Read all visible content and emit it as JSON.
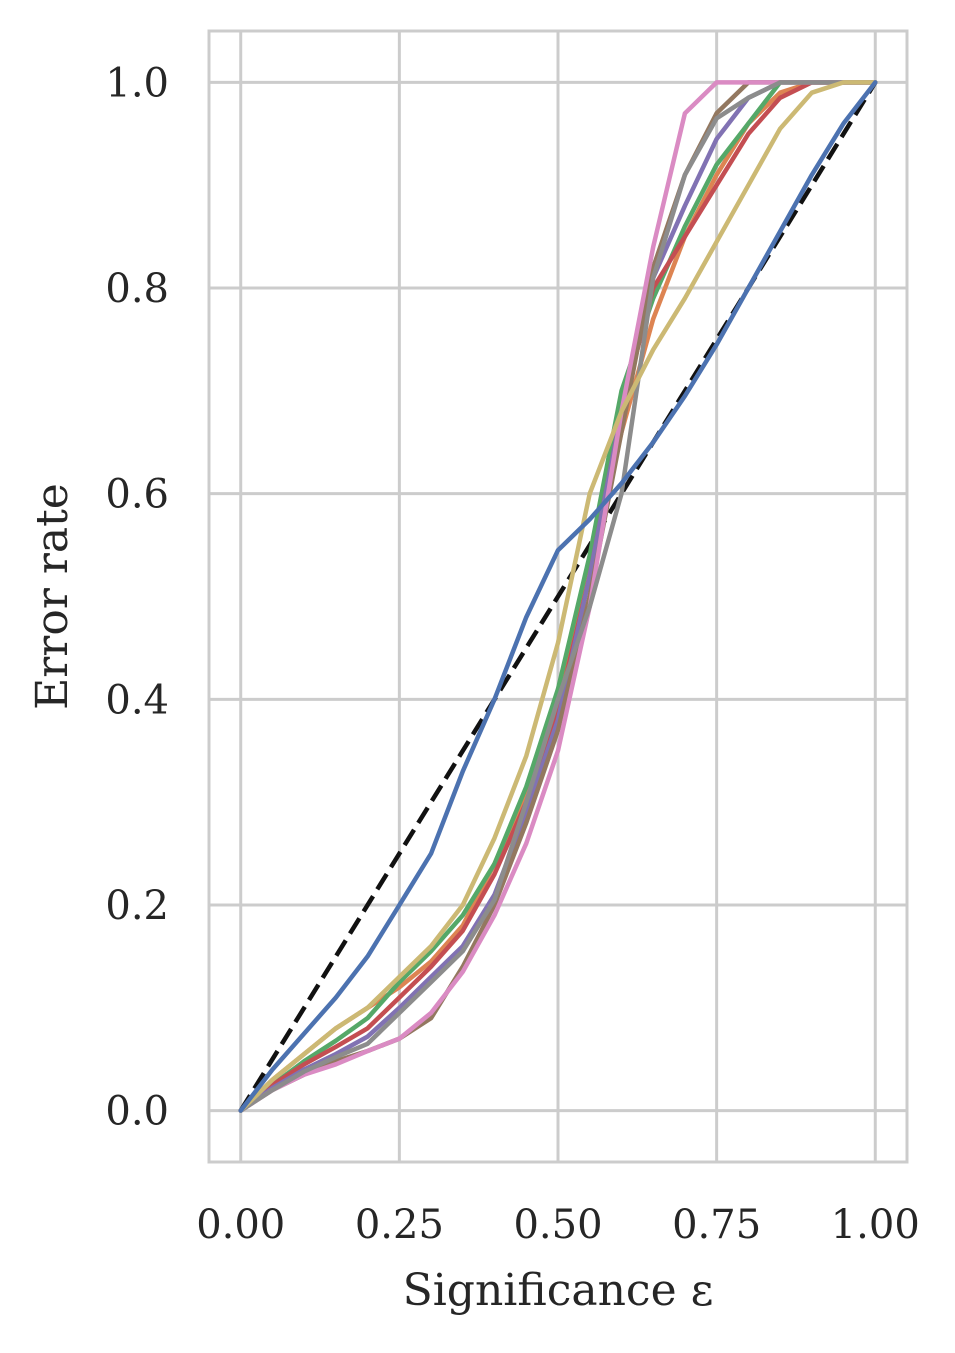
{
  "chart_data": {
    "type": "line",
    "title": "",
    "xlabel": "Significance ε",
    "ylabel": "Error rate",
    "xlim": [
      -0.05,
      1.05
    ],
    "ylim": [
      -0.05,
      1.05
    ],
    "grid": true,
    "legend": "none",
    "x_ticks": [
      {
        "value": 0.0,
        "label": "0.00"
      },
      {
        "value": 0.25,
        "label": "0.25"
      },
      {
        "value": 0.5,
        "label": "0.50"
      },
      {
        "value": 0.75,
        "label": "0.75"
      },
      {
        "value": 1.0,
        "label": "1.00"
      }
    ],
    "y_ticks": [
      {
        "value": 0.0,
        "label": "0.0"
      },
      {
        "value": 0.2,
        "label": "0.2"
      },
      {
        "value": 0.4,
        "label": "0.4"
      },
      {
        "value": 0.6,
        "label": "0.6"
      },
      {
        "value": 0.8,
        "label": "0.8"
      },
      {
        "value": 1.0,
        "label": "1.0"
      }
    ],
    "reference_line": {
      "x": [
        0,
        1
      ],
      "y": [
        0,
        1
      ],
      "color": "#111111",
      "style": "dashed"
    },
    "x": [
      0,
      0.05,
      0.1,
      0.15,
      0.2,
      0.25,
      0.3,
      0.35,
      0.4,
      0.45,
      0.5,
      0.55,
      0.6,
      0.65,
      0.7,
      0.75,
      0.8,
      0.85,
      0.9,
      0.95,
      1.0
    ],
    "series": [
      {
        "color": "#dd8452",
        "values": [
          0,
          0.03,
          0.055,
          0.08,
          0.1,
          0.12,
          0.145,
          0.18,
          0.24,
          0.31,
          0.4,
          0.53,
          0.66,
          0.77,
          0.85,
          0.91,
          0.96,
          0.99,
          1.0,
          1.0,
          1.0
        ]
      },
      {
        "color": "#55a868",
        "values": [
          0,
          0.025,
          0.048,
          0.068,
          0.09,
          0.125,
          0.155,
          0.19,
          0.24,
          0.315,
          0.41,
          0.54,
          0.7,
          0.79,
          0.86,
          0.92,
          0.96,
          1.0,
          1.0,
          1.0,
          1.0
        ]
      },
      {
        "color": "#c44e52",
        "values": [
          0,
          0.025,
          0.045,
          0.062,
          0.08,
          0.11,
          0.14,
          0.175,
          0.23,
          0.3,
          0.39,
          0.52,
          0.68,
          0.8,
          0.85,
          0.9,
          0.95,
          0.985,
          1.0,
          1.0,
          1.0
        ]
      },
      {
        "color": "#8172b3",
        "values": [
          0,
          0.022,
          0.04,
          0.055,
          0.072,
          0.1,
          0.13,
          0.16,
          0.21,
          0.29,
          0.38,
          0.52,
          0.68,
          0.81,
          0.88,
          0.945,
          0.985,
          1.0,
          1.0,
          1.0,
          1.0
        ]
      },
      {
        "color": "#937860",
        "values": [
          0,
          0.02,
          0.035,
          0.048,
          0.058,
          0.07,
          0.09,
          0.14,
          0.2,
          0.28,
          0.37,
          0.5,
          0.66,
          0.82,
          0.91,
          0.97,
          1.0,
          1.0,
          1.0,
          1.0,
          1.0
        ]
      },
      {
        "color": "#da8bc3",
        "values": [
          0,
          0.02,
          0.035,
          0.045,
          0.058,
          0.07,
          0.095,
          0.135,
          0.19,
          0.26,
          0.35,
          0.49,
          0.68,
          0.84,
          0.97,
          1.0,
          1.0,
          1.0,
          1.0,
          1.0,
          1.0
        ]
      },
      {
        "color": "#8c8c8c",
        "values": [
          0,
          0.02,
          0.038,
          0.052,
          0.065,
          0.095,
          0.125,
          0.155,
          0.205,
          0.3,
          0.4,
          0.49,
          0.6,
          0.81,
          0.91,
          0.965,
          0.985,
          1.0,
          1.0,
          1.0,
          1.0
        ]
      },
      {
        "color": "#ccb974",
        "values": [
          0,
          0.03,
          0.055,
          0.08,
          0.1,
          0.13,
          0.16,
          0.2,
          0.265,
          0.345,
          0.455,
          0.6,
          0.68,
          0.74,
          0.79,
          0.845,
          0.9,
          0.955,
          0.99,
          1.0,
          1.0
        ]
      },
      {
        "color": "#4c72b0",
        "values": [
          0,
          0.04,
          0.075,
          0.11,
          0.15,
          0.2,
          0.25,
          0.33,
          0.4,
          0.48,
          0.545,
          0.575,
          0.61,
          0.65,
          0.695,
          0.745,
          0.8,
          0.855,
          0.91,
          0.96,
          1.0
        ]
      }
    ]
  }
}
